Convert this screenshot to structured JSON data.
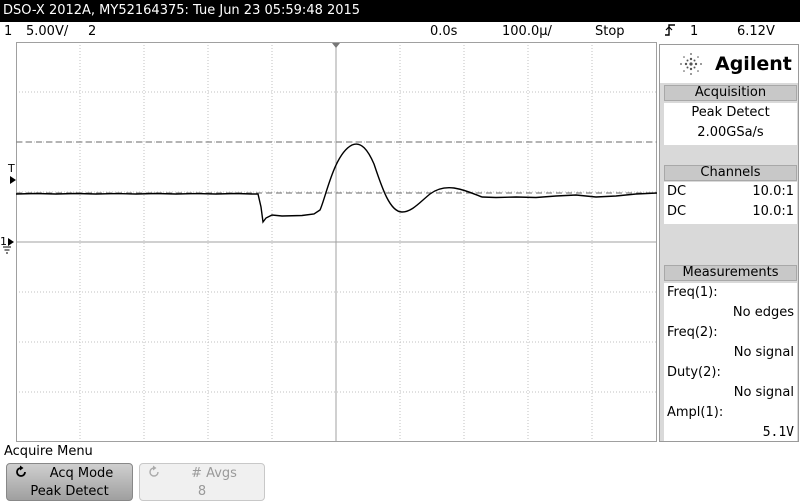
{
  "title": "DSO-X 2012A, MY52164375: Tue Jun 23 05:59:48 2015",
  "status": {
    "ch1_num": "1",
    "ch1_scale": "5.00V/",
    "ch2_num": "2",
    "time_offset": "0.0s",
    "timebase": "100.0µ/",
    "run_state": "Stop",
    "trig_icon": "trigger-edge-rising",
    "trig_source": "1",
    "trig_level": "6.12V"
  },
  "markers": {
    "trigger": "T",
    "ch1": "1"
  },
  "brand": "Agilent",
  "acquisition": {
    "header": "Acquisition",
    "mode": "Peak Detect",
    "rate": "2.00GSa/s"
  },
  "channels": {
    "header": "Channels",
    "rows": [
      {
        "coupling": "DC",
        "probe": "10.0:1"
      },
      {
        "coupling": "DC",
        "probe": "10.0:1"
      }
    ]
  },
  "measurements": {
    "header": "Measurements",
    "items": [
      {
        "label": "Freq(1):",
        "value": "No edges"
      },
      {
        "label": "Freq(2):",
        "value": "No signal"
      },
      {
        "label": "Duty(2):",
        "value": "No signal"
      },
      {
        "label": "Ampl(1):",
        "value": "5.1V"
      }
    ]
  },
  "menu": {
    "title": "Acquire Menu",
    "softkeys": [
      {
        "label": "Acq Mode",
        "value": "Peak Detect",
        "enabled": true
      },
      {
        "label": "# Avgs",
        "value": "8",
        "enabled": false
      }
    ]
  },
  "colors": {
    "background": "#ffffff",
    "titlebar": "#000000",
    "grid": "#c0c0c0",
    "trace": "#000000"
  }
}
